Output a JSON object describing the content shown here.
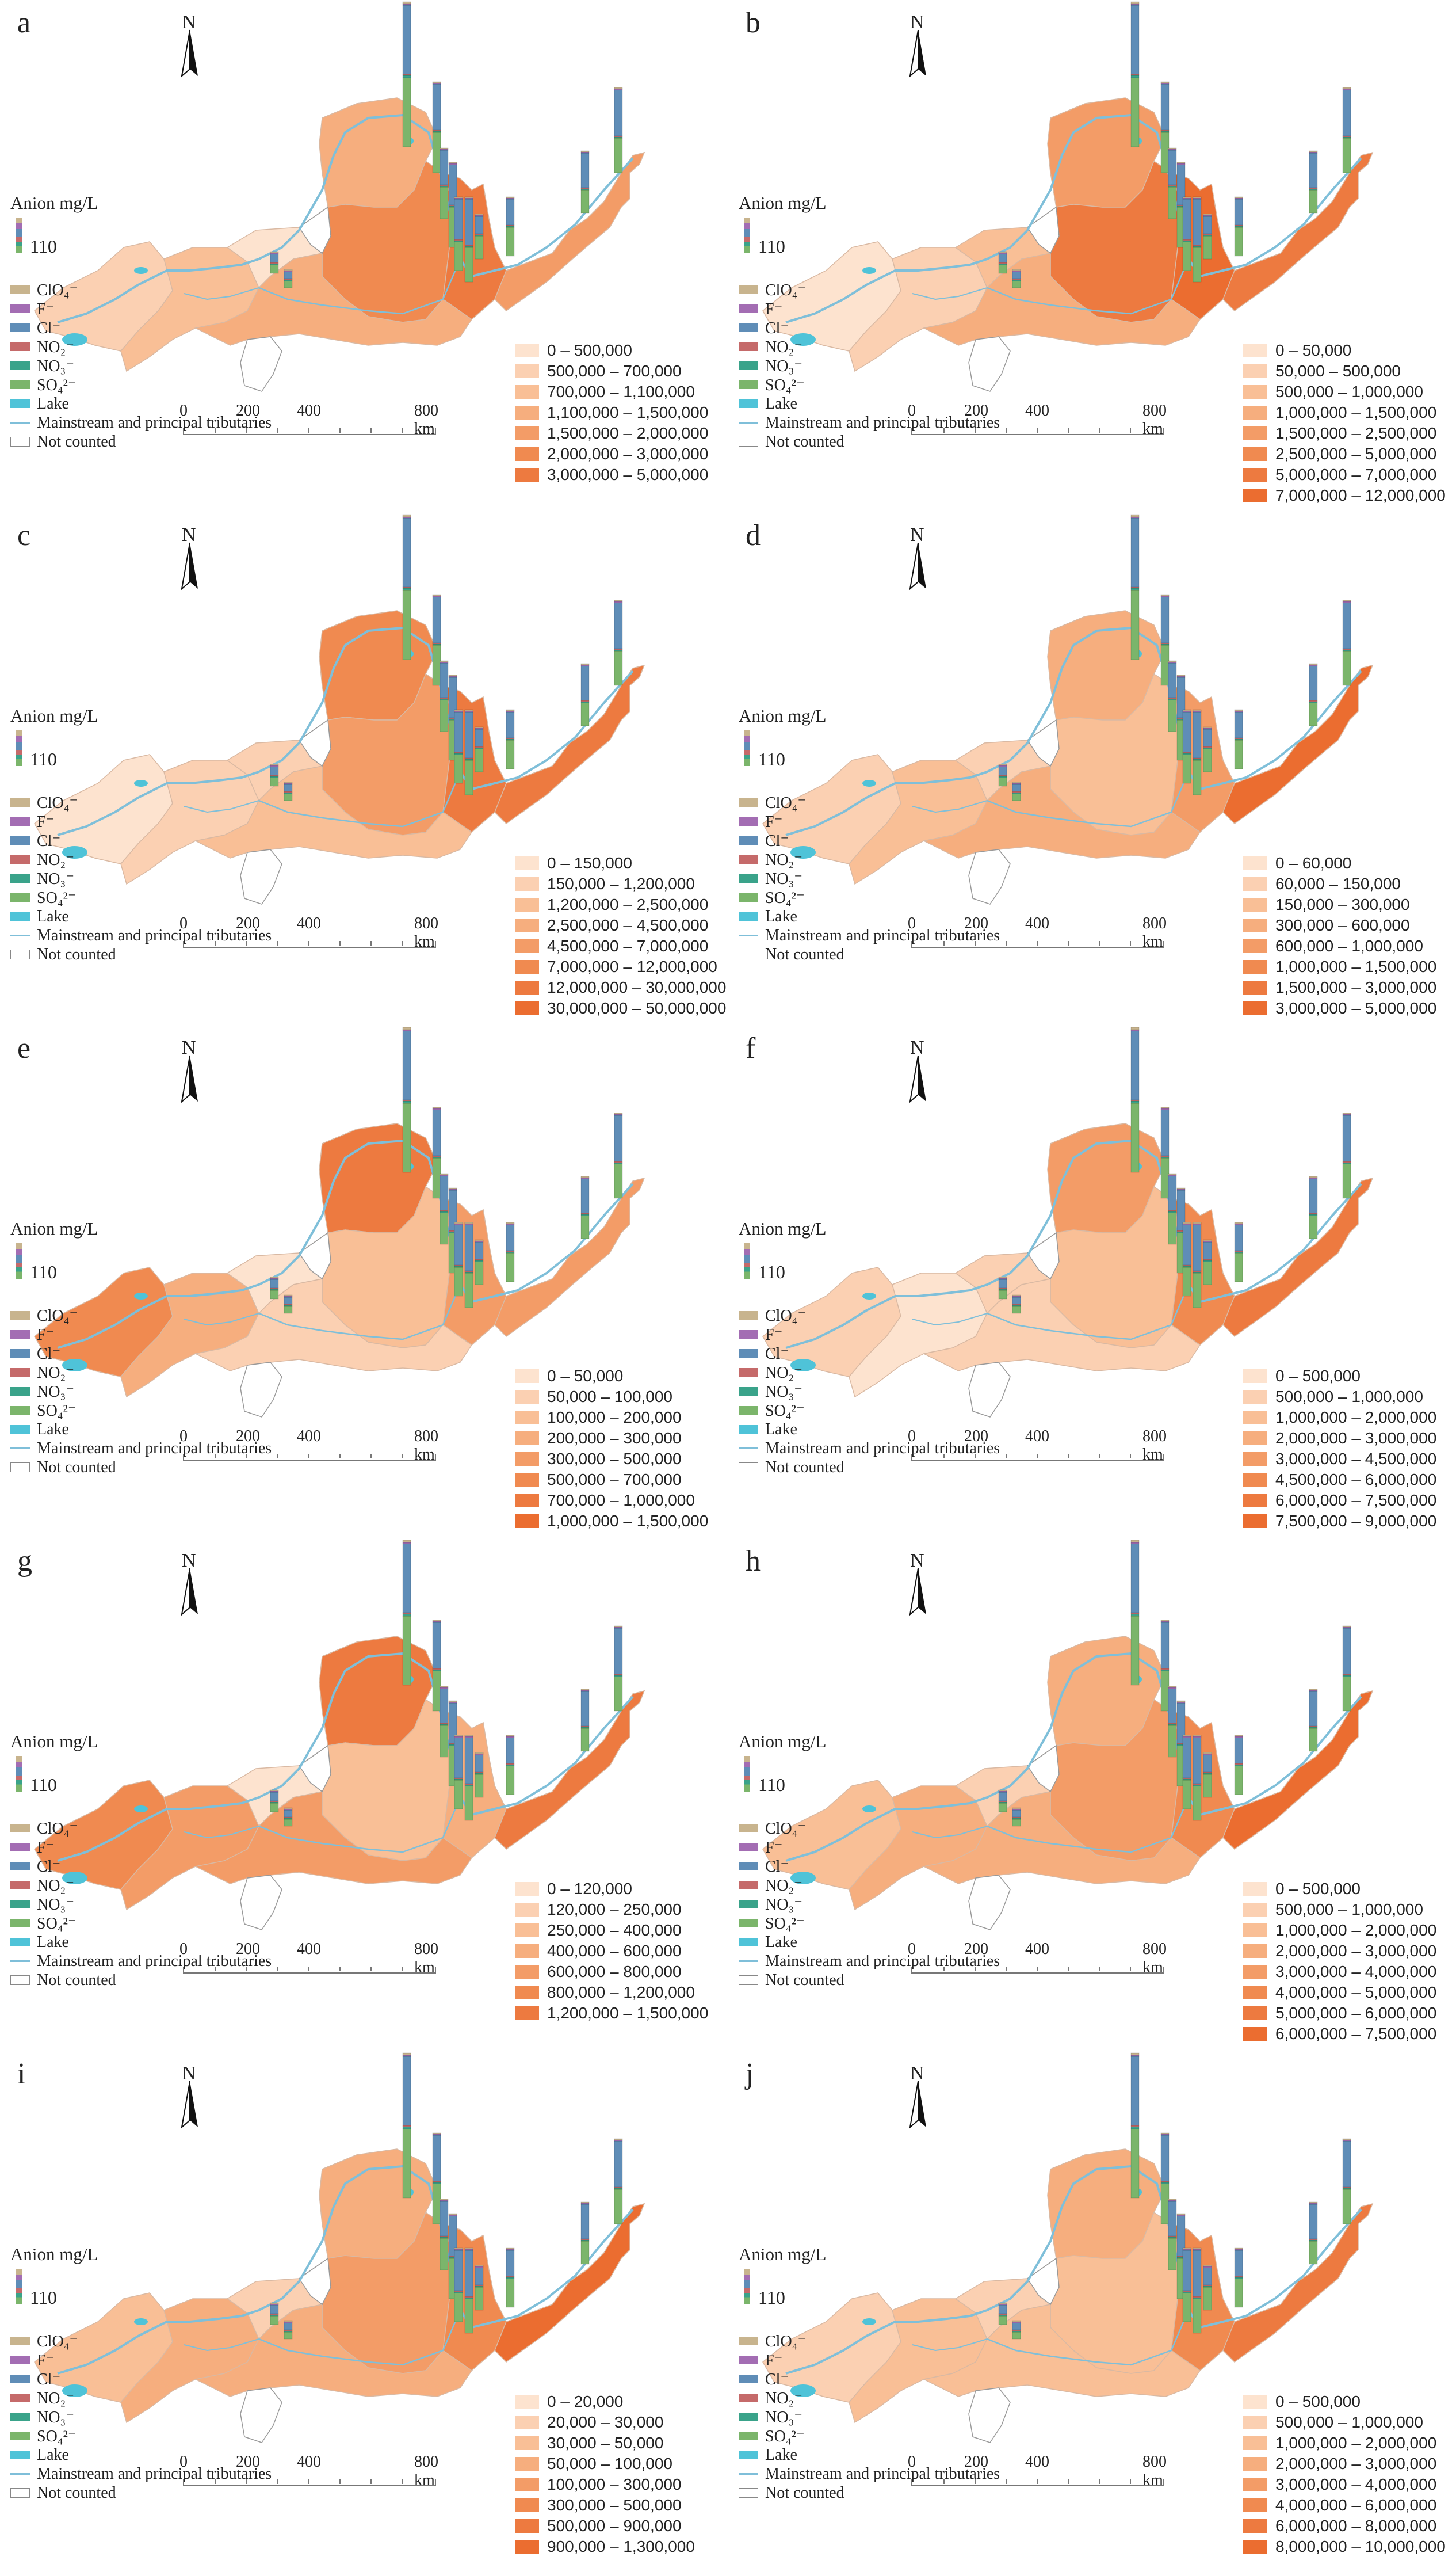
{
  "colors": [
    "#fde3cf",
    "#fbd0b2",
    "#f9bf96",
    "#f6ae7e",
    "#f39c67",
    "#f08a50",
    "#ed7a40",
    "#eb6d30"
  ],
  "anion_colors": {
    "ClO4": "#c8b48e",
    "F": "#a36db3",
    "Cl": "#5f8db7",
    "NO2": "#c56a6a",
    "NO3": "#3aa38a",
    "SO4": "#7bb56b",
    "lake": "#4fc3d8",
    "river": "#7fbfd9"
  },
  "common": {
    "north": "N",
    "anion_title": "Anion mg/L",
    "anion_value": "110",
    "legend": [
      {
        "key": "ClO4",
        "label": "ClO₄⁻"
      },
      {
        "key": "F",
        "label": "F⁻"
      },
      {
        "key": "Cl",
        "label": "Cl⁻"
      },
      {
        "key": "NO2",
        "label": "NO₂⁻"
      },
      {
        "key": "NO3",
        "label": "NO₃⁻"
      },
      {
        "key": "SO4",
        "label": "SO₄²⁻"
      },
      {
        "key": "lake",
        "label": "Lake"
      }
    ],
    "river_label": "Mainstream and principal tributaries",
    "not_counted_label": "Not counted",
    "scale_labels": [
      "0",
      "200",
      "400",
      "800 km"
    ]
  },
  "panels": [
    {
      "label": "a",
      "classes": [
        "0 – 500,000",
        "500,000 – 700,000",
        "700,000 – 1,100,000",
        "1,100,000 – 1,500,000",
        "1,500,000 – 2,000,000",
        "2,000,000 – 3,000,000",
        "3,000,000 – 5,000,000"
      ]
    },
    {
      "label": "b",
      "classes": [
        "0 – 50,000",
        "50,000 – 500,000",
        "500,000 – 1,000,000",
        "1,000,000 – 1,500,000",
        "1,500,000 – 2,500,000",
        "2,500,000 – 5,000,000",
        "5,000,000 – 7,000,000",
        "7,000,000 – 12,000,000"
      ]
    },
    {
      "label": "c",
      "classes": [
        "0 – 150,000",
        "150,000 – 1,200,000",
        "1,200,000 – 2,500,000",
        "2,500,000 – 4,500,000",
        "4,500,000 – 7,000,000",
        "7,000,000 – 12,000,000",
        "12,000,000 – 30,000,000",
        "30,000,000 – 50,000,000"
      ]
    },
    {
      "label": "d",
      "classes": [
        "0 – 60,000",
        "60,000 – 150,000",
        "150,000 – 300,000",
        "300,000 – 600,000",
        "600,000 – 1,000,000",
        "1,000,000 – 1,500,000",
        "1,500,000 – 3,000,000",
        "3,000,000 – 5,000,000"
      ]
    },
    {
      "label": "e",
      "classes": [
        "0 – 50,000",
        "50,000 – 100,000",
        "100,000 – 200,000",
        "200,000 – 300,000",
        "300,000 – 500,000",
        "500,000 – 700,000",
        "700,000 – 1,000,000",
        "1,000,000 – 1,500,000"
      ]
    },
    {
      "label": "f",
      "classes": [
        "0 – 500,000",
        "500,000 – 1,000,000",
        "1,000,000 – 2,000,000",
        "2,000,000 – 3,000,000",
        "3,000,000 – 4,500,000",
        "4,500,000 – 6,000,000",
        "6,000,000 – 7,500,000",
        "7,500,000 – 9,000,000"
      ]
    },
    {
      "label": "g",
      "classes": [
        "0 – 120,000",
        "120,000 – 250,000",
        "250,000 – 400,000",
        "400,000 – 600,000",
        "600,000 – 800,000",
        "800,000 – 1,200,000",
        "1,200,000 – 1,500,000"
      ]
    },
    {
      "label": "h",
      "classes": [
        "0 – 500,000",
        "500,000 – 1,000,000",
        "1,000,000 – 2,000,000",
        "2,000,000 – 3,000,000",
        "3,000,000 – 4,000,000",
        "4,000,000 – 5,000,000",
        "5,000,000 – 6,000,000",
        "6,000,000 – 7,500,000"
      ]
    },
    {
      "label": "i",
      "classes": [
        "0 – 20,000",
        "20,000 – 30,000",
        "30,000 – 50,000",
        "50,000 – 100,000",
        "100,000 – 300,000",
        "300,000 – 500,000",
        "500,000 – 900,000",
        "900,000 – 1,300,000"
      ]
    },
    {
      "label": "j",
      "classes": [
        "0 – 500,000",
        "500,000 – 1,000,000",
        "1,000,000 – 2,000,000",
        "2,000,000 – 3,000,000",
        "3,000,000 – 4,000,000",
        "4,000,000 – 6,000,000",
        "6,000,000 – 8,000,000",
        "8,000,000 – 10,000,000"
      ]
    }
  ]
}
